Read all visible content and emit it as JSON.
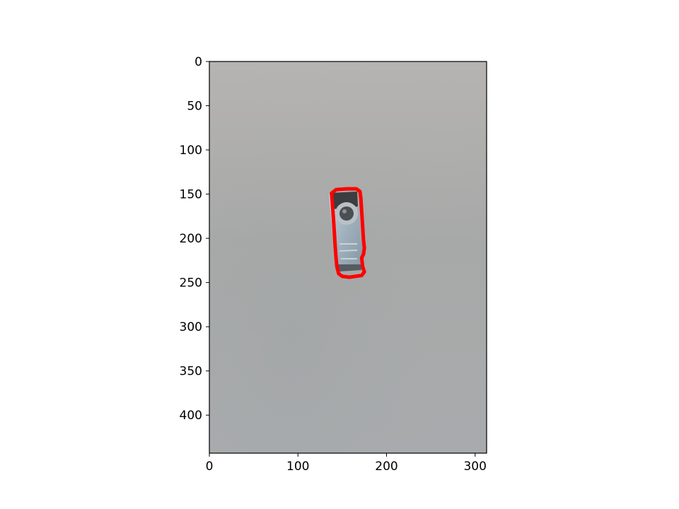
{
  "figure": {
    "background": "#ffffff",
    "axes": {
      "x": {
        "ticks": [
          0,
          100,
          200,
          300
        ],
        "range": [
          0,
          313
        ]
      },
      "y": {
        "ticks": [
          0,
          50,
          100,
          150,
          200,
          250,
          300,
          350,
          400
        ],
        "range": [
          0,
          443
        ],
        "inverted": true
      }
    },
    "image": {
      "background_color": "#b4b3b1",
      "subject_icon": "hardware-bracket",
      "contour_color": "#ff0000",
      "contour_points": [
        [
          138,
          149
        ],
        [
          143,
          145
        ],
        [
          155,
          144
        ],
        [
          166,
          144
        ],
        [
          170,
          147
        ],
        [
          171,
          155
        ],
        [
          172,
          170
        ],
        [
          173,
          186
        ],
        [
          174,
          202
        ],
        [
          175,
          211
        ],
        [
          174,
          218
        ],
        [
          172,
          222
        ],
        [
          173,
          232
        ],
        [
          175,
          238
        ],
        [
          172,
          242
        ],
        [
          165,
          243
        ],
        [
          158,
          244
        ],
        [
          150,
          243
        ],
        [
          146,
          240
        ],
        [
          144,
          232
        ],
        [
          143,
          222
        ],
        [
          142,
          208
        ],
        [
          141,
          192
        ],
        [
          140,
          176
        ],
        [
          139,
          163
        ]
      ]
    }
  }
}
